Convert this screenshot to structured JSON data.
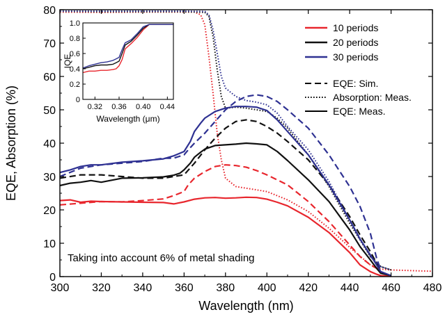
{
  "chart_data": [
    {
      "type": "line",
      "xlabel": "Wavelength (nm)",
      "ylabel": "EQE, Absorption (%)",
      "xlim": [
        300,
        480
      ],
      "ylim": [
        0,
        80
      ],
      "xticks": [
        300,
        320,
        340,
        360,
        380,
        400,
        420,
        440,
        460,
        480
      ],
      "yticks": [
        0,
        10,
        20,
        30,
        40,
        50,
        60,
        70,
        80
      ],
      "grid": false,
      "legend_position": "top-right",
      "legend": {
        "colors": [
          {
            "label": "10 periods",
            "color": "#e8262d"
          },
          {
            "label": "20 periods",
            "color": "#111111"
          },
          {
            "label": "30 periods",
            "color": "#2e3192"
          }
        ],
        "styles": [
          {
            "label": "EQE: Sim.",
            "dash": "dashed"
          },
          {
            "label": "Absorption: Meas.",
            "dash": "dotted"
          },
          {
            "label": "EQE: Meas.",
            "dash": "solid"
          }
        ]
      },
      "annotation": "Taking into account  6% of metal shading",
      "series": [
        {
          "periods": 10,
          "kind": "EQE: Meas.",
          "color": "#e8262d",
          "dash": "solid",
          "x": [
            300,
            305,
            310,
            315,
            320,
            330,
            340,
            350,
            355,
            360,
            365,
            370,
            375,
            380,
            385,
            390,
            395,
            400,
            405,
            410,
            420,
            430,
            440,
            445,
            450,
            453,
            455,
            460
          ],
          "y": [
            22.8,
            23,
            22.3,
            22.6,
            22.5,
            22.4,
            22.3,
            22.2,
            21.8,
            22.4,
            23.2,
            23.6,
            23.7,
            23.5,
            23.6,
            23.8,
            23.7,
            23.2,
            22.3,
            21.2,
            17.8,
            13.2,
            7.2,
            3.5,
            1.5,
            0.7,
            0.3,
            0.1
          ]
        },
        {
          "periods": 10,
          "kind": "EQE: Sim.",
          "color": "#e8262d",
          "dash": "dashed",
          "x": [
            300,
            310,
            320,
            330,
            340,
            350,
            355,
            360,
            362,
            365,
            370,
            375,
            380,
            385,
            390,
            395,
            400,
            405,
            410,
            420,
            430,
            440,
            445,
            450,
            453,
            455
          ],
          "y": [
            21.5,
            22,
            22.5,
            22.4,
            22.8,
            23.3,
            24.3,
            25.5,
            27.5,
            29.5,
            31.5,
            33,
            33.5,
            33.3,
            32.8,
            31.8,
            30.5,
            29,
            27.5,
            22.5,
            16.5,
            9.5,
            6,
            3.5,
            2.5,
            1.5
          ]
        },
        {
          "periods": 10,
          "kind": "Absorption: Meas.",
          "color": "#e8262d",
          "dash": "dotted",
          "x": [
            300,
            320,
            340,
            360,
            365,
            368,
            370,
            372,
            374,
            376,
            378,
            380,
            385,
            390,
            400,
            410,
            420,
            430,
            440,
            450,
            455,
            460,
            470,
            480
          ],
          "y": [
            79.3,
            79.2,
            79.3,
            79.3,
            79.3,
            78.5,
            75.5,
            66,
            55,
            43,
            35,
            29.5,
            27,
            26.5,
            25.5,
            23,
            19.5,
            14.5,
            8.8,
            3.5,
            2.2,
            2.0,
            1.8,
            1.6
          ]
        },
        {
          "periods": 20,
          "kind": "EQE: Meas.",
          "color": "#111111",
          "dash": "solid",
          "x": [
            300,
            305,
            310,
            315,
            320,
            330,
            340,
            350,
            355,
            358,
            360,
            363,
            365,
            368,
            370,
            375,
            380,
            385,
            390,
            395,
            400,
            405,
            410,
            420,
            430,
            440,
            445,
            450,
            453,
            455,
            460
          ],
          "y": [
            27.3,
            28,
            28.3,
            28.8,
            28.3,
            29.5,
            29.6,
            29.9,
            30.4,
            31,
            32,
            34,
            35.8,
            37.3,
            38.2,
            39.3,
            39.5,
            39.7,
            40,
            39.8,
            39.5,
            37.5,
            34.8,
            29,
            22.5,
            14,
            9,
            5,
            2.5,
            1,
            0.3
          ]
        },
        {
          "periods": 20,
          "kind": "EQE: Sim.",
          "color": "#111111",
          "dash": "dashed",
          "x": [
            300,
            310,
            320,
            330,
            340,
            350,
            360,
            365,
            370,
            375,
            380,
            385,
            390,
            395,
            400,
            405,
            410,
            420,
            430,
            440,
            445,
            450,
            453,
            455
          ],
          "y": [
            29.5,
            30.5,
            30.5,
            30,
            29.5,
            29.5,
            30.5,
            34,
            38,
            41.5,
            44.5,
            46.5,
            47,
            46.5,
            45,
            43,
            40.5,
            35,
            27.5,
            18,
            12.5,
            7.5,
            4,
            2
          ]
        },
        {
          "periods": 20,
          "kind": "Absorption: Meas.",
          "color": "#111111",
          "dash": "dotted",
          "x": [
            300,
            320,
            340,
            360,
            370,
            372,
            374,
            376,
            378,
            380,
            385,
            390,
            395,
            400,
            405,
            410,
            420,
            430,
            440,
            450,
            455,
            460
          ],
          "y": [
            79.5,
            79.4,
            79.4,
            79.4,
            79.2,
            78,
            72,
            62,
            54,
            50.5,
            50.8,
            50.5,
            50,
            49.5,
            47.5,
            44.5,
            36.5,
            27,
            16,
            6,
            3,
            2
          ]
        },
        {
          "periods": 30,
          "kind": "EQE: Meas.",
          "color": "#2e3192",
          "dash": "solid",
          "x": [
            300,
            305,
            310,
            315,
            320,
            330,
            340,
            350,
            355,
            360,
            363,
            365,
            368,
            370,
            375,
            380,
            385,
            390,
            395,
            400,
            405,
            410,
            420,
            430,
            440,
            445,
            450,
            453,
            455,
            460
          ],
          "y": [
            31.2,
            32,
            33,
            33.5,
            33.5,
            34.3,
            34.7,
            35.3,
            36.2,
            37.5,
            40.5,
            43.5,
            46,
            47.5,
            49.5,
            50.5,
            51,
            51,
            50.8,
            49.8,
            47,
            43.5,
            36.5,
            27.5,
            17,
            11.2,
            6.5,
            3.5,
            1.5,
            0.3
          ]
        },
        {
          "periods": 30,
          "kind": "EQE: Sim.",
          "color": "#2e3192",
          "dash": "dashed",
          "x": [
            300,
            310,
            320,
            330,
            340,
            350,
            355,
            360,
            362,
            365,
            370,
            375,
            380,
            385,
            390,
            395,
            400,
            405,
            410,
            420,
            430,
            440,
            445,
            450,
            453,
            455
          ],
          "y": [
            30,
            32.5,
            33.5,
            34,
            34.5,
            35.5,
            35.5,
            36.5,
            38,
            40,
            43,
            46.5,
            50,
            52.5,
            54,
            54.5,
            54,
            52.5,
            50,
            44.5,
            36.5,
            27,
            21,
            13,
            5.5,
            2
          ]
        },
        {
          "periods": 30,
          "kind": "Absorption: Meas.",
          "color": "#2e3192",
          "dash": "dotted",
          "x": [
            300,
            320,
            340,
            360,
            370,
            372,
            374,
            376,
            378,
            380,
            385,
            390,
            395,
            400,
            405,
            410,
            420,
            430,
            440,
            450,
            455,
            460
          ],
          "y": [
            79.6,
            79.6,
            79.6,
            79.6,
            79.5,
            78.5,
            74,
            67,
            60,
            56.5,
            54,
            52.8,
            52.3,
            51.5,
            49,
            45,
            38,
            28.5,
            17,
            6,
            3,
            2
          ]
        }
      ]
    },
    {
      "type": "line",
      "xlabel": "Wavelength (μm)",
      "ylabel": "IQE",
      "xlim": [
        0.3,
        0.45
      ],
      "ylim": [
        0,
        1.0
      ],
      "xticks": [
        0.32,
        0.36,
        0.4,
        0.44
      ],
      "xtick_labels": [
        "0.32",
        "0.36",
        "0.40",
        "0.44"
      ],
      "yticks": [
        0,
        0.2,
        0.4,
        0.6,
        0.8,
        1.0
      ],
      "ytick_labels": [
        "0",
        "0.2",
        "0.4",
        "0.6",
        "0.8",
        "1.0"
      ],
      "grid": false,
      "series": [
        {
          "periods": 10,
          "color": "#e8262d",
          "x": [
            0.3,
            0.31,
            0.32,
            0.33,
            0.34,
            0.35,
            0.355,
            0.36,
            0.365,
            0.37,
            0.38,
            0.39,
            0.4,
            0.41,
            0.42,
            0.43,
            0.44,
            0.45
          ],
          "y": [
            0.35,
            0.37,
            0.37,
            0.38,
            0.38,
            0.39,
            0.4,
            0.44,
            0.52,
            0.66,
            0.73,
            0.81,
            0.91,
            0.98,
            0.98,
            0.98,
            0.98,
            0.98
          ]
        },
        {
          "periods": 20,
          "color": "#111111",
          "x": [
            0.3,
            0.31,
            0.32,
            0.33,
            0.34,
            0.35,
            0.355,
            0.36,
            0.365,
            0.37,
            0.38,
            0.39,
            0.4,
            0.41,
            0.42,
            0.43,
            0.44,
            0.45
          ],
          "y": [
            0.4,
            0.42,
            0.44,
            0.45,
            0.45,
            0.46,
            0.48,
            0.5,
            0.6,
            0.71,
            0.76,
            0.84,
            0.93,
            0.98,
            0.98,
            0.98,
            0.98,
            0.98
          ]
        },
        {
          "periods": 30,
          "color": "#2e3192",
          "x": [
            0.3,
            0.31,
            0.32,
            0.33,
            0.34,
            0.35,
            0.355,
            0.36,
            0.365,
            0.37,
            0.38,
            0.39,
            0.4,
            0.41,
            0.42,
            0.43,
            0.44,
            0.45
          ],
          "y": [
            0.41,
            0.44,
            0.46,
            0.48,
            0.49,
            0.51,
            0.53,
            0.55,
            0.65,
            0.74,
            0.78,
            0.86,
            0.95,
            0.98,
            0.98,
            0.98,
            0.98,
            0.98
          ]
        }
      ]
    }
  ]
}
